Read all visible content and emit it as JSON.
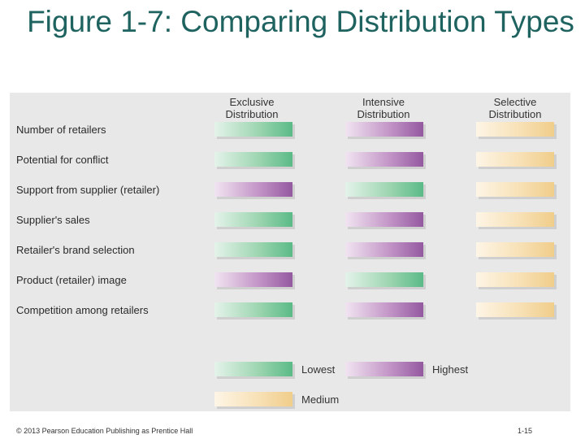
{
  "title": "Figure 1-7: Comparing Distribution Types",
  "columns": [
    "Exclusive Distribution",
    "Intensive Distribution",
    "Selective Distribution"
  ],
  "rows": [
    {
      "label": "Number of retailers",
      "levels": [
        "lowest",
        "highest",
        "medium"
      ]
    },
    {
      "label": "Potential for conflict",
      "levels": [
        "lowest",
        "highest",
        "medium"
      ]
    },
    {
      "label": "Support from supplier (retailer)",
      "levels": [
        "highest",
        "lowest",
        "medium"
      ]
    },
    {
      "label": "Supplier's sales",
      "levels": [
        "lowest",
        "highest",
        "medium"
      ]
    },
    {
      "label": "Retailer's brand selection",
      "levels": [
        "lowest",
        "highest",
        "medium"
      ]
    },
    {
      "label": "Product (retailer) image",
      "levels": [
        "highest",
        "lowest",
        "medium"
      ]
    },
    {
      "label": "Competition among retailers",
      "levels": [
        "lowest",
        "highest",
        "medium"
      ]
    }
  ],
  "legend": {
    "lowest": "Lowest",
    "highest": "Highest",
    "medium": "Medium"
  },
  "colors": {
    "lowest": "#5aba86",
    "highest": "#9459a0",
    "medium": "#f0cd8a",
    "title": "#1f6360"
  },
  "footer": {
    "copyright": "© 2013 Pearson Education Publishing as Prentice Hall",
    "page": "1-15"
  }
}
